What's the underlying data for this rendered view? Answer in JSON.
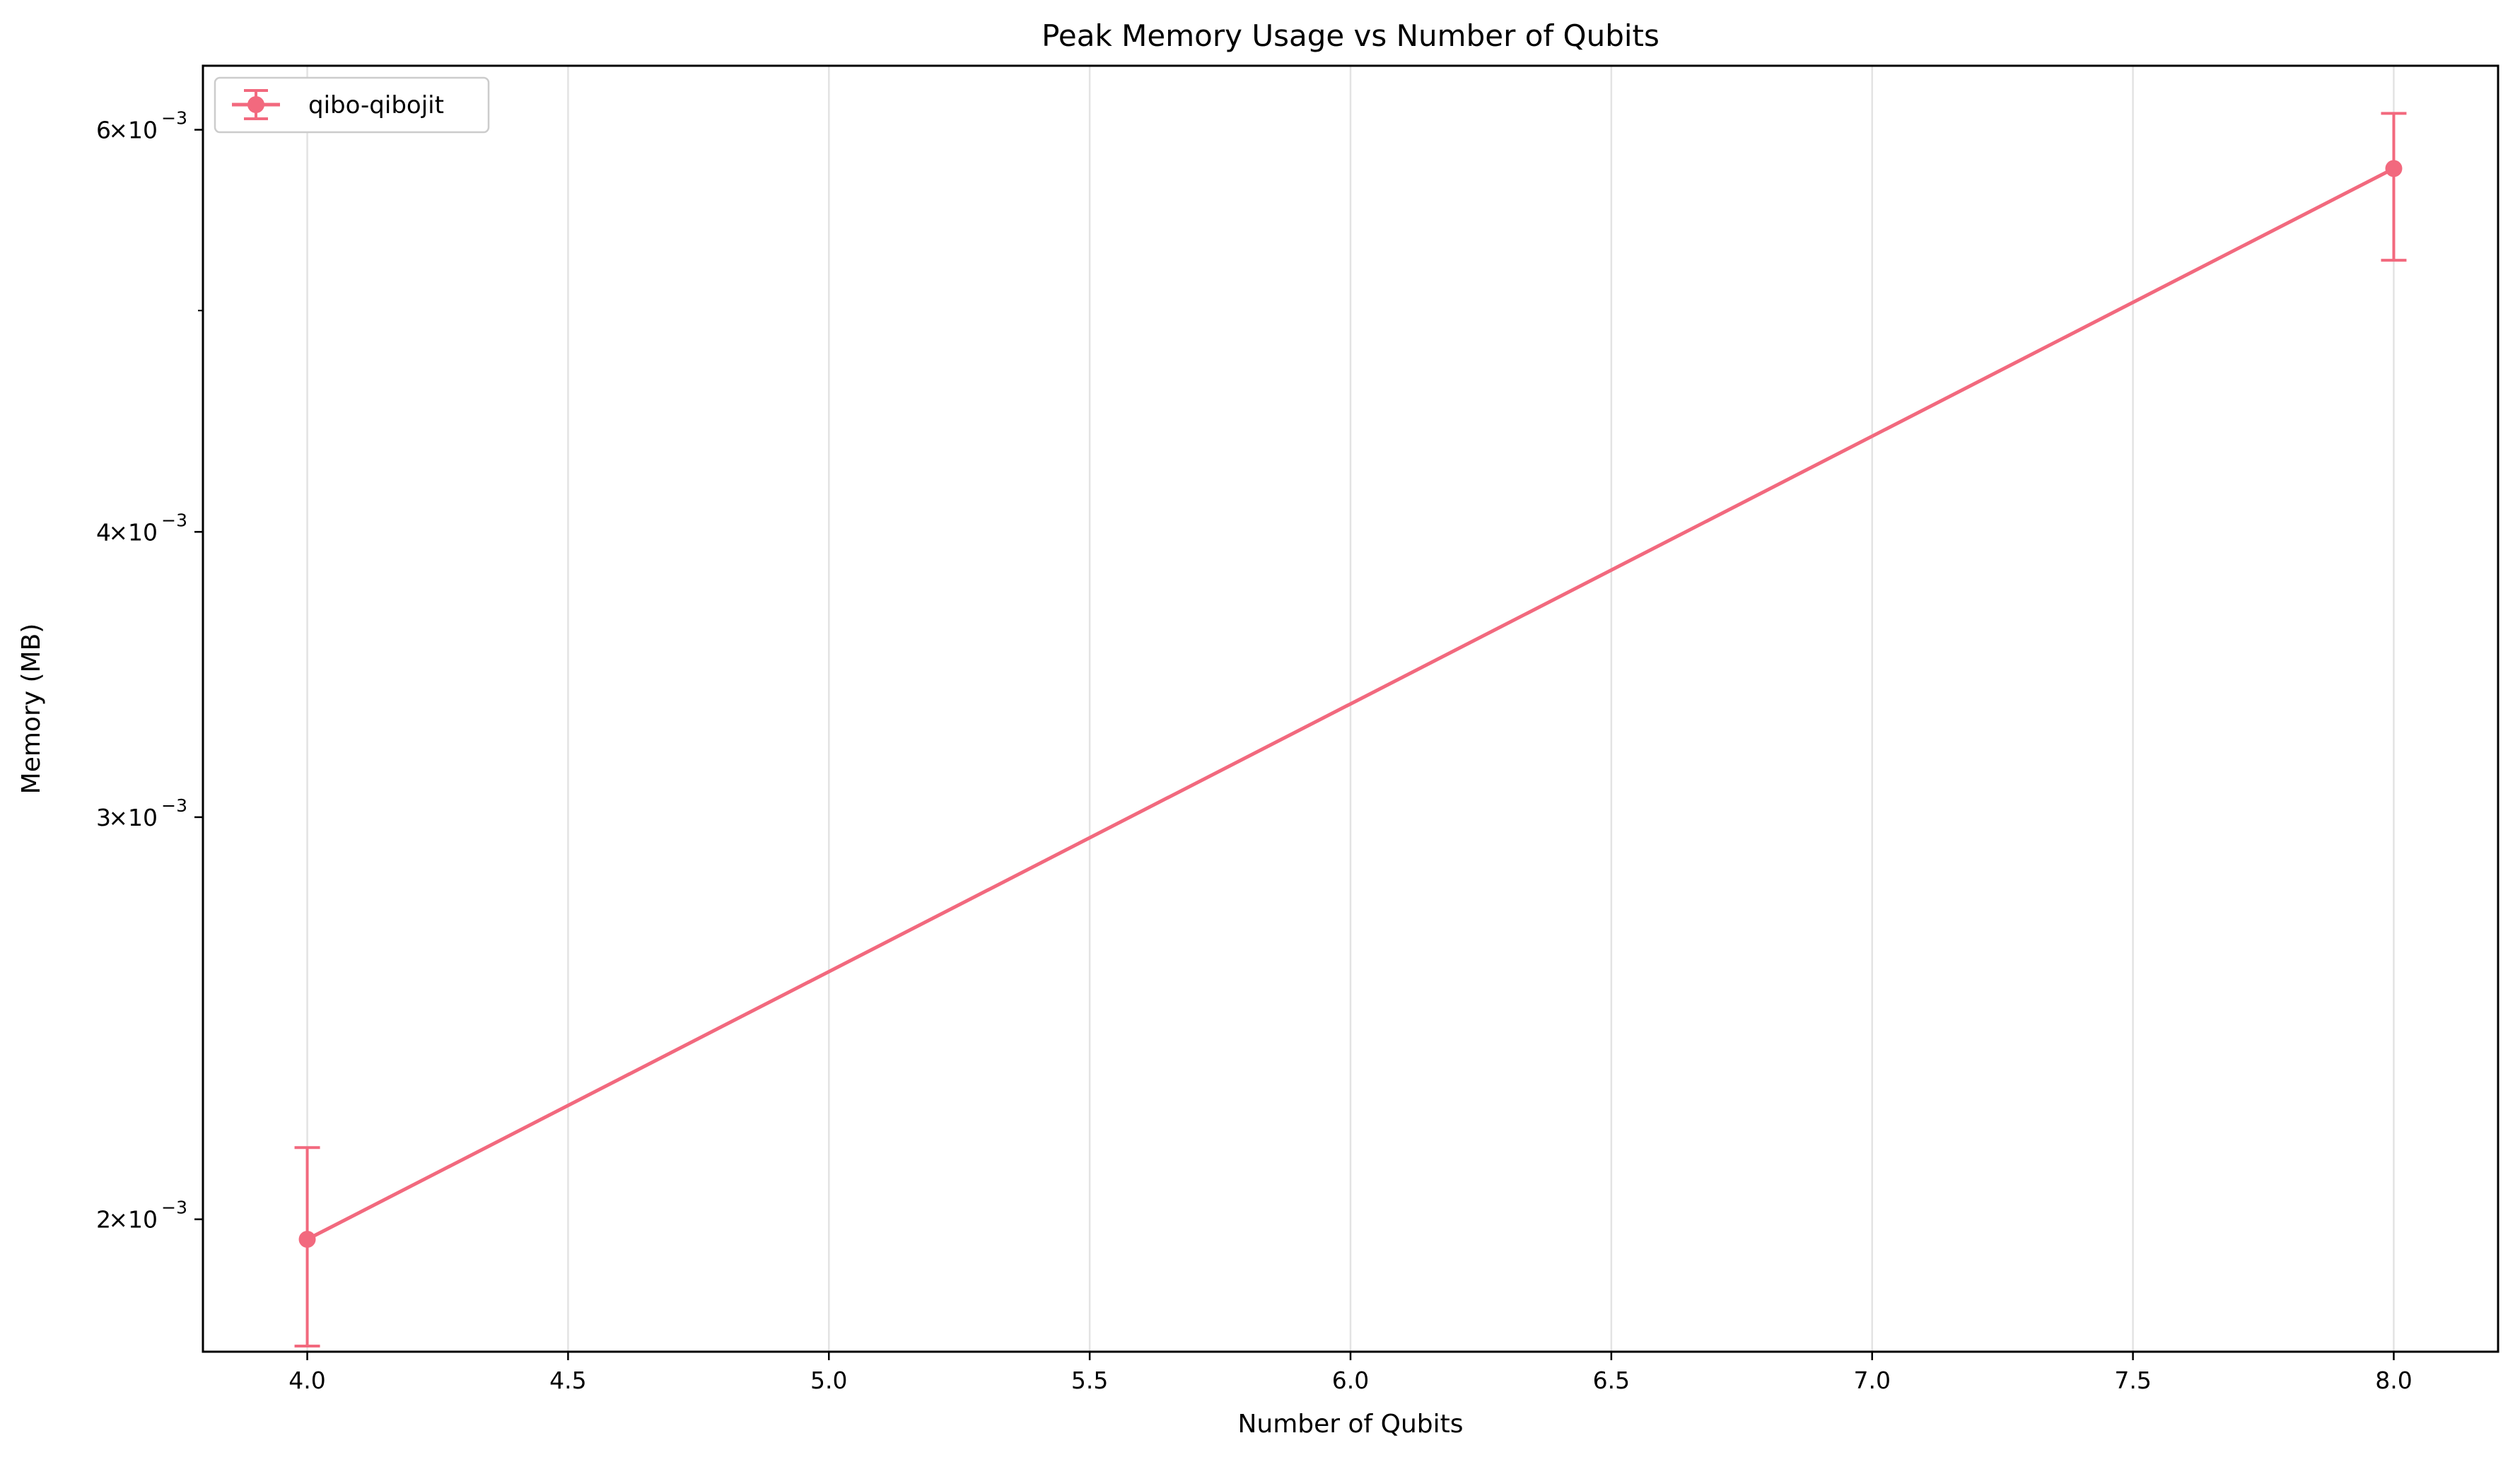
{
  "chart_data": {
    "type": "line",
    "title": "Peak Memory Usage vs Number of Qubits",
    "xlabel": "Number of Qubits",
    "ylabel": "Memory (MB)",
    "xlim": [
      3.8,
      8.2
    ],
    "ylim": [
      0.00175,
      0.0064
    ],
    "yscale": "log",
    "grid": "x-only",
    "legend_position": "top-left",
    "x_ticks": [
      4.0,
      4.5,
      5.0,
      5.5,
      6.0,
      6.5,
      7.0,
      7.5,
      8.0
    ],
    "x_tick_labels": [
      "4.0",
      "4.5",
      "5.0",
      "5.5",
      "6.0",
      "6.5",
      "7.0",
      "7.5",
      "8.0"
    ],
    "y_major_ticks": [
      {
        "value": 0.002,
        "mantissa": "2",
        "base": "10",
        "exp": "−3"
      },
      {
        "value": 0.003,
        "mantissa": "3",
        "base": "10",
        "exp": "−3"
      },
      {
        "value": 0.004,
        "mantissa": "4",
        "base": "10",
        "exp": "−3"
      },
      {
        "value": 0.006,
        "mantissa": "6",
        "base": "10",
        "exp": "−3"
      }
    ],
    "y_minor_ticks": [
      0.005
    ],
    "series": [
      {
        "name": "qibo-qibojit",
        "color": "#f2697e",
        "x": [
          4,
          8
        ],
        "y": [
          0.00196,
          0.00577
        ],
        "y_err_low": [
          0.00176,
          0.00526
        ],
        "y_err_high": [
          0.00215,
          0.0061
        ]
      }
    ]
  }
}
